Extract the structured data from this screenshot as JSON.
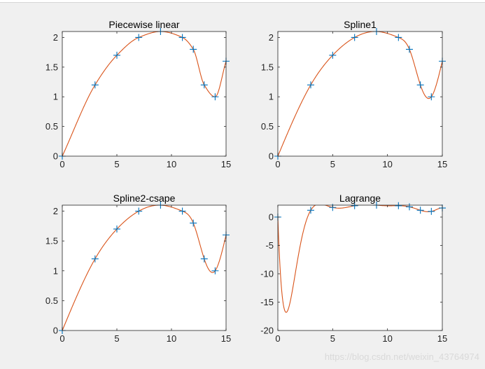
{
  "watermark": "https://blog.csdn.net/weixin_43764974",
  "colors": {
    "curve": "#D95319",
    "marker": "#0072BD",
    "axes": "#262626",
    "plot_bg": "#ffffff",
    "fig_bg": "#f0f0f0"
  },
  "chart_data": [
    {
      "type": "line",
      "title": "Piecewise linear",
      "interp": "pchip",
      "xlim": [
        0,
        15
      ],
      "ylim": [
        0,
        2.1
      ],
      "xticks": [
        0,
        5,
        10,
        15
      ],
      "yticks": [
        0,
        0.5,
        1,
        1.5,
        2
      ],
      "ytick_labels": [
        "0",
        "0.5",
        "1",
        "1.5",
        "2"
      ],
      "x": [
        0,
        3,
        5,
        7,
        9,
        11,
        12,
        13,
        14,
        15
      ],
      "y": [
        0,
        1.2,
        1.7,
        2.0,
        2.1,
        2.0,
        1.8,
        1.2,
        1.0,
        1.6
      ]
    },
    {
      "type": "line",
      "title": "Spline1",
      "interp": "spline",
      "xlim": [
        0,
        15
      ],
      "ylim": [
        0,
        2.1
      ],
      "xticks": [
        0,
        5,
        10,
        15
      ],
      "yticks": [
        0,
        0.5,
        1,
        1.5,
        2
      ],
      "ytick_labels": [
        "0",
        "0.5",
        "1",
        "1.5",
        "2"
      ],
      "x": [
        0,
        3,
        5,
        7,
        9,
        11,
        12,
        13,
        14,
        15
      ],
      "y": [
        0,
        1.2,
        1.7,
        2.0,
        2.1,
        2.0,
        1.8,
        1.2,
        1.0,
        1.6
      ]
    },
    {
      "type": "line",
      "title": "Spline2-csape",
      "interp": "spline",
      "xlim": [
        0,
        15
      ],
      "ylim": [
        0,
        2.1
      ],
      "xticks": [
        0,
        5,
        10,
        15
      ],
      "yticks": [
        0,
        0.5,
        1,
        1.5,
        2
      ],
      "ytick_labels": [
        "0",
        "0.5",
        "1",
        "1.5",
        "2"
      ],
      "x": [
        0,
        3,
        5,
        7,
        9,
        11,
        12,
        13,
        14,
        15
      ],
      "y": [
        0,
        1.2,
        1.7,
        2.0,
        2.1,
        2.0,
        1.8,
        1.2,
        1.0,
        1.6
      ]
    },
    {
      "type": "line",
      "title": "Lagrange",
      "interp": "lagrange",
      "xlim": [
        0,
        15
      ],
      "ylim": [
        -20,
        2.1
      ],
      "xticks": [
        0,
        5,
        10,
        15
      ],
      "yticks": [
        -20,
        -15,
        -10,
        -5,
        0
      ],
      "ytick_labels": [
        "-20",
        "-15",
        "-10",
        "-5",
        "0"
      ],
      "x": [
        0,
        3,
        5,
        7,
        9,
        11,
        12,
        13,
        14,
        15
      ],
      "y": [
        0,
        1.2,
        1.7,
        2.0,
        2.1,
        2.0,
        1.8,
        1.2,
        1.0,
        1.6
      ]
    }
  ]
}
